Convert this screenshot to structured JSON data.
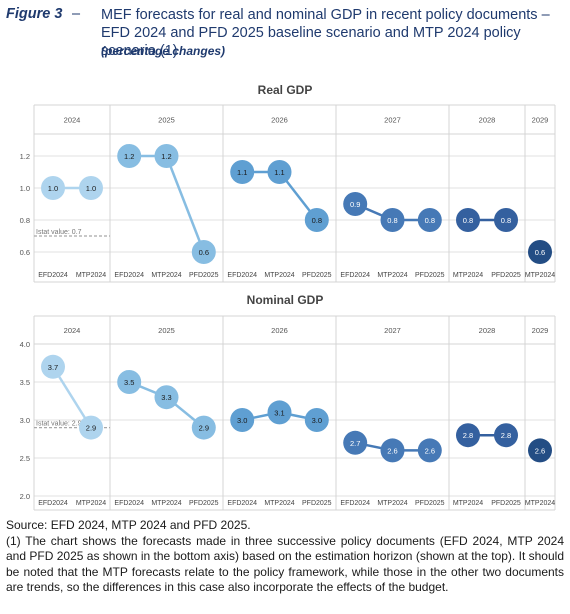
{
  "figure": {
    "label": "Figure 3",
    "dash": "–",
    "title": "MEF forecasts for real and nominal GDP in recent policy documents – EFD 2024 and PFD 2025 baseline scenario and MTP 2024 policy scenario (1)",
    "subtitle": "(percentage changes)"
  },
  "footer": {
    "source": "Source: EFD 2024, MTP 2024 and PFD 2025.",
    "note": "(1) The chart shows the forecasts made in three successive policy documents (EFD 2024, MTP 2024 and PFD 2025 as shown in the bottom axis) based on the estimation horizon (shown at the top). It should be noted that the MTP forecasts relate to the policy framework, while those in the other two documents are trends, so the differences in this case also incorporate the effects of the budget."
  },
  "colors": {
    "2024": "#aed4ee",
    "2025": "#87bde2",
    "2026": "#5f9fd2",
    "2027": "#4679b6",
    "2028": "#34609f",
    "2029": "#234d84",
    "grid": "#e2e2e2",
    "reference": "#a8a8a8"
  },
  "chart_data": [
    {
      "type": "scatter",
      "title": "Real GDP",
      "years": [
        "2024",
        "2025",
        "2026",
        "2027",
        "2028",
        "2029"
      ],
      "ylim": [
        0.5,
        1.3
      ],
      "yticks": [
        "1.2",
        "1.0",
        "0.8",
        "0.6"
      ],
      "reference": {
        "label": "Istat value: 0.7",
        "value": 0.7
      },
      "panels": [
        {
          "year": "2024",
          "points": [
            {
              "doc": "EFD2024",
              "value": 1.0,
              "label": "1.0"
            },
            {
              "doc": "MTP2024",
              "value": 1.0,
              "label": "1.0"
            }
          ]
        },
        {
          "year": "2025",
          "points": [
            {
              "doc": "EFD2024",
              "value": 1.2,
              "label": "1.2"
            },
            {
              "doc": "MTP2024",
              "value": 1.2,
              "label": "1.2"
            },
            {
              "doc": "PFD2025",
              "value": 0.6,
              "label": "0.6"
            }
          ]
        },
        {
          "year": "2026",
          "points": [
            {
              "doc": "EFD2024",
              "value": 1.1,
              "label": "1.1"
            },
            {
              "doc": "MTP2024",
              "value": 1.1,
              "label": "1.1"
            },
            {
              "doc": "PFD2025",
              "value": 0.8,
              "label": "0.8"
            }
          ]
        },
        {
          "year": "2027",
          "points": [
            {
              "doc": "EFD2024",
              "value": 0.9,
              "label": "0.9"
            },
            {
              "doc": "MTP2024",
              "value": 0.8,
              "label": "0.8"
            },
            {
              "doc": "PFD2025",
              "value": 0.8,
              "label": "0.8"
            }
          ]
        },
        {
          "year": "2028",
          "points": [
            {
              "doc": "MTP2024",
              "value": 0.8,
              "label": "0.8"
            },
            {
              "doc": "PFD2025",
              "value": 0.8,
              "label": "0.8"
            }
          ]
        },
        {
          "year": "2029",
          "points": [
            {
              "doc": "MTP2024",
              "value": 0.6,
              "label": "0.6"
            }
          ]
        }
      ]
    },
    {
      "type": "scatter",
      "title": "Nominal GDP",
      "years": [
        "2024",
        "2025",
        "2026",
        "2027",
        "2028",
        "2029"
      ],
      "ylim": [
        2.0,
        4.0
      ],
      "yticks": [
        "4.0",
        "3.5",
        "3.0",
        "2.5",
        "2.0"
      ],
      "reference": {
        "label": "Istat value: 2.9",
        "value": 2.9
      },
      "panels": [
        {
          "year": "2024",
          "points": [
            {
              "doc": "EFD2024",
              "value": 3.7,
              "label": "3.7"
            },
            {
              "doc": "MTP2024",
              "value": 2.9,
              "label": "2.9"
            }
          ]
        },
        {
          "year": "2025",
          "points": [
            {
              "doc": "EFD2024",
              "value": 3.5,
              "label": "3.5"
            },
            {
              "doc": "MTP2024",
              "value": 3.3,
              "label": "3.3"
            },
            {
              "doc": "PFD2025",
              "value": 2.9,
              "label": "2.9"
            }
          ]
        },
        {
          "year": "2026",
          "points": [
            {
              "doc": "EFD2024",
              "value": 3.0,
              "label": "3.0"
            },
            {
              "doc": "MTP2024",
              "value": 3.1,
              "label": "3.1"
            },
            {
              "doc": "PFD2025",
              "value": 3.0,
              "label": "3.0"
            }
          ]
        },
        {
          "year": "2027",
          "points": [
            {
              "doc": "EFD2024",
              "value": 2.7,
              "label": "2.7"
            },
            {
              "doc": "MTP2024",
              "value": 2.6,
              "label": "2.6"
            },
            {
              "doc": "PFD2025",
              "value": 2.6,
              "label": "2.6"
            }
          ]
        },
        {
          "year": "2028",
          "points": [
            {
              "doc": "MTP2024",
              "value": 2.8,
              "label": "2.8"
            },
            {
              "doc": "PFD2025",
              "value": 2.8,
              "label": "2.8"
            }
          ]
        },
        {
          "year": "2029",
          "points": [
            {
              "doc": "MTP2024",
              "value": 2.6,
              "label": "2.6"
            }
          ]
        }
      ]
    }
  ]
}
